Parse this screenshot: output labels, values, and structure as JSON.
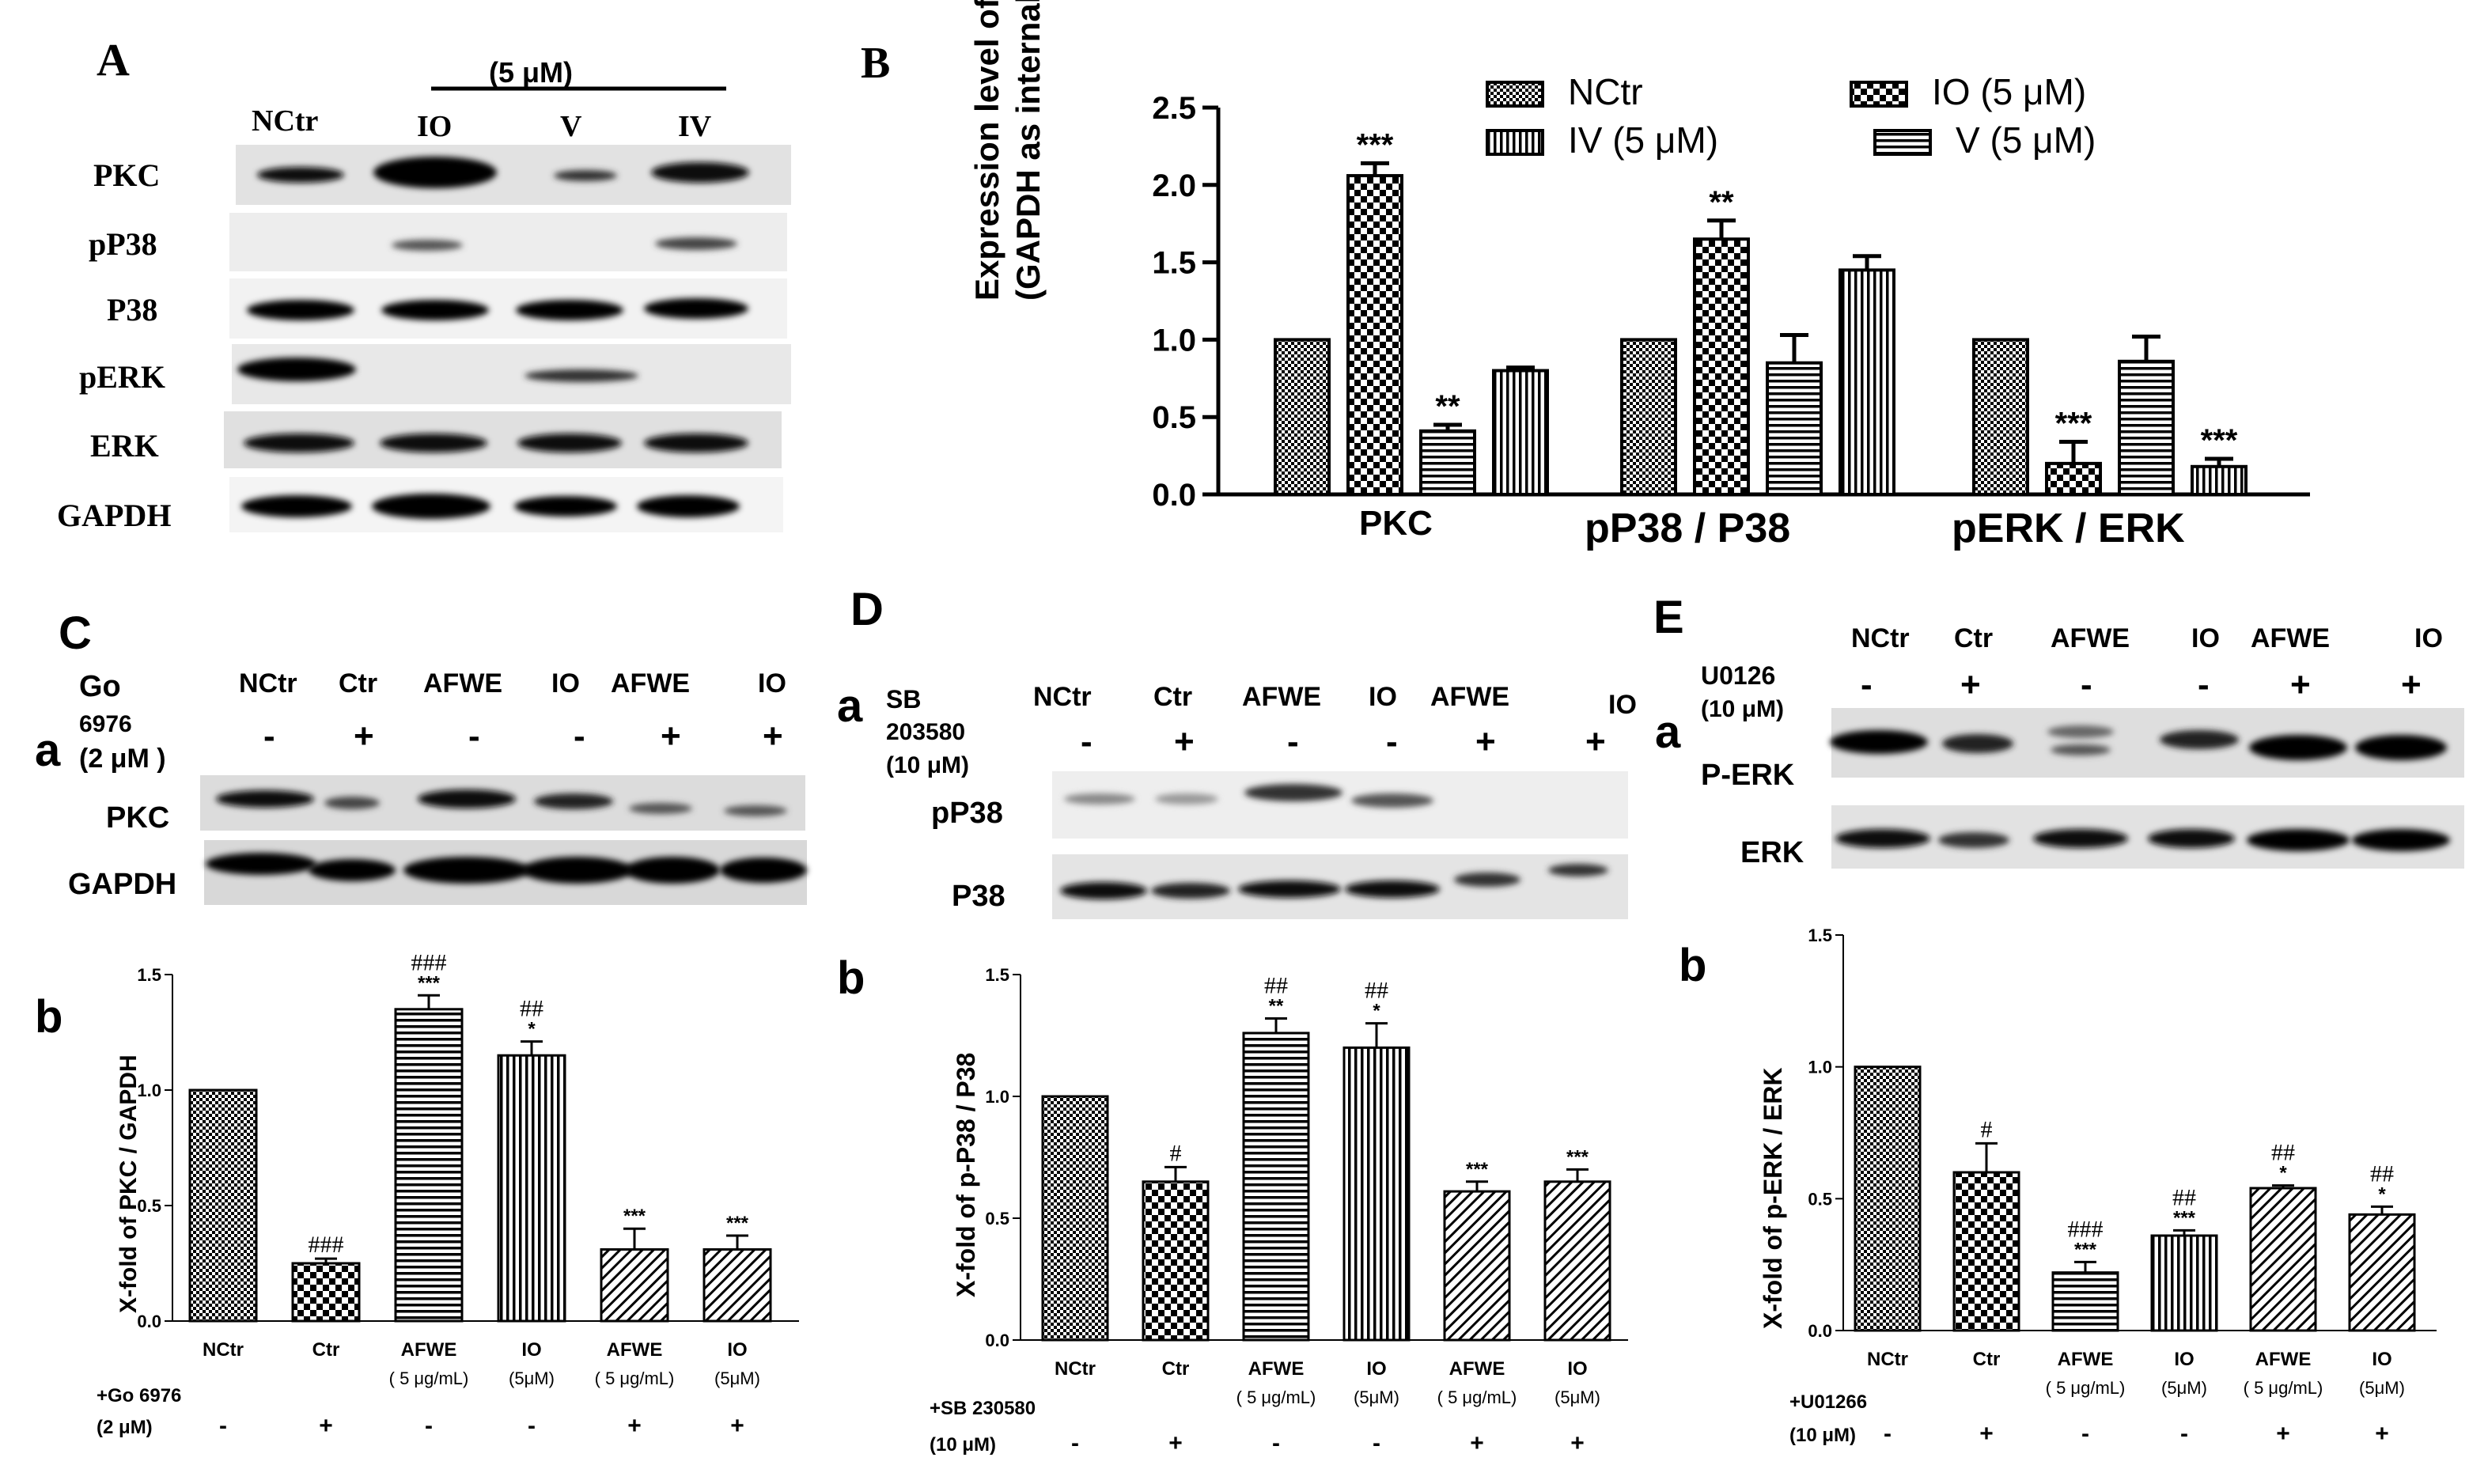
{
  "figure": {
    "panelA": {
      "letter": "A",
      "dose": "(5 μM)",
      "lanes": [
        "NCtr",
        "IO",
        "V",
        "IV"
      ],
      "rows": [
        "PKC",
        "pP38",
        "P38",
        "pERK",
        "ERK",
        "GAPDH"
      ]
    },
    "panelB": {
      "letter": "B",
      "ylabel1": "Expression level of proteins",
      "ylabel2": "(GAPDH as internal normalization)",
      "legend": [
        "NCtr",
        "IO (5 μM)",
        "IV (5 μM)",
        "V (5 μM)"
      ],
      "groups": [
        "PKC",
        "pP38 / P38",
        "pERK / ERK"
      ],
      "yticks": [
        "0.0",
        "0.5",
        "1.0",
        "1.5",
        "2.0",
        "2.5"
      ]
    },
    "panelC": {
      "letter": "C",
      "sub_a": "a",
      "sub_b": "b",
      "inhibitor1": "Go",
      "inhibitor2": "6976",
      "inhibitor3": "(2 μM )",
      "lanes": [
        "NCtr",
        "Ctr",
        "AFWE",
        "IO",
        "AFWE",
        "IO"
      ],
      "signs": [
        "-",
        "+",
        "-",
        "-",
        "+",
        "+"
      ],
      "rows": [
        "PKC",
        "GAPDH"
      ],
      "ylabel": "X-fold of PKC / GAPDH",
      "yticks": [
        "0.0",
        "0.5",
        "1.0",
        "1.5"
      ],
      "xcats": [
        [
          "NCtr"
        ],
        [
          "Ctr"
        ],
        [
          "AFWE",
          "( 5 μg/mL)"
        ],
        [
          "IO",
          "(5μM)"
        ],
        [
          "AFWE",
          "( 5 μg/mL)"
        ],
        [
          "IO",
          "(5μM)"
        ]
      ],
      "bottom1": "+Go 6976",
      "bottom2": "(2 μM)",
      "bsigns": [
        "-",
        "+",
        "-",
        "-",
        "+",
        "+"
      ]
    },
    "panelD": {
      "letter": "D",
      "sub_a": "a",
      "sub_b": "b",
      "inhibitor1": "SB",
      "inhibitor2": "203580",
      "inhibitor3": "(10  μM)",
      "lanes": [
        "NCtr",
        "Ctr",
        "AFWE",
        "IO",
        "AFWE",
        "IO"
      ],
      "signs": [
        "-",
        "+",
        "-",
        "-",
        "+",
        "+"
      ],
      "rows": [
        "pP38",
        "P38"
      ],
      "ylabel": "X-fold of p-P38 / P38",
      "yticks": [
        "0.0",
        "0.5",
        "1.0",
        "1.5"
      ],
      "xcats": [
        [
          "NCtr"
        ],
        [
          "Ctr"
        ],
        [
          "AFWE",
          "( 5 μg/mL)"
        ],
        [
          "IO",
          "(5μM)"
        ],
        [
          "AFWE",
          "( 5 μg/mL)"
        ],
        [
          "IO",
          "(5μM)"
        ]
      ],
      "bottom1": "+SB 230580",
      "bottom2": "(10 μM)",
      "bsigns": [
        "-",
        "+",
        "-",
        "-",
        "+",
        "+"
      ]
    },
    "panelE": {
      "letter": "E",
      "sub_a": "a",
      "sub_b": "b",
      "inhibitor1": "U0126",
      "inhibitor2": "(10  μM)",
      "lanes": [
        "NCtr",
        "Ctr",
        "AFWE",
        "IO",
        "AFWE",
        "IO"
      ],
      "signs": [
        "-",
        "+",
        "-",
        "-",
        "+",
        "+"
      ],
      "rows": [
        "P-ERK",
        "ERK"
      ],
      "ylabel": "X-fold of p-ERK / ERK",
      "yticks": [
        "0.0",
        "0.5",
        "1.0",
        "1.5"
      ],
      "xcats": [
        [
          "NCtr"
        ],
        [
          "Ctr"
        ],
        [
          "AFWE",
          "( 5 μg/mL)"
        ],
        [
          "IO",
          "(5μM)"
        ],
        [
          "AFWE",
          "( 5 μg/mL)"
        ],
        [
          "IO",
          "(5μM)"
        ]
      ],
      "bottom1": "+U01266",
      "bottom2": "(10 μM)",
      "bsigns": [
        "-",
        "+",
        "-",
        "-",
        "+",
        "+"
      ]
    }
  },
  "chart_data": [
    {
      "type": "bar",
      "panel": "B",
      "ylabel": "Expression level of proteins (GAPDH as internal normalization)",
      "categories": [
        "PKC",
        "pP38 / P38",
        "pERK / ERK"
      ],
      "ylim": [
        0,
        2.5
      ],
      "legend_position": "top",
      "series": [
        {
          "name": "NCtr",
          "values": [
            1.0,
            1.0,
            1.0
          ],
          "errors": [
            0,
            0,
            0
          ],
          "marks": [
            "",
            "",
            ""
          ],
          "pattern": "checker"
        },
        {
          "name": "IO (5 μM)",
          "values": [
            2.06,
            1.65,
            0.2
          ],
          "errors": [
            0.08,
            0.12,
            0.14
          ],
          "marks": [
            "***",
            "**",
            "***"
          ],
          "pattern": "checker_large"
        },
        {
          "name": "V (5 μM)",
          "values": [
            0.41,
            0.85,
            0.86
          ],
          "errors": [
            0.04,
            0.18,
            0.16
          ],
          "marks": [
            "**",
            "",
            ""
          ],
          "pattern": "hlines"
        },
        {
          "name": "IV (5 μM)",
          "values": [
            0.8,
            1.45,
            0.18
          ],
          "errors": [
            0.02,
            0.09,
            0.05
          ],
          "marks": [
            "",
            "",
            "***"
          ],
          "pattern": "vlines"
        }
      ]
    },
    {
      "type": "bar",
      "panel": "Cb",
      "ylabel": "X-fold of PKC / GAPDH",
      "categories": [
        "NCtr",
        "Ctr",
        "AFWE ( 5 μg/mL)",
        "IO (5μM)",
        "AFWE ( 5 μg/mL)",
        "IO (5μM)"
      ],
      "values": [
        1.0,
        0.25,
        1.35,
        1.15,
        0.31,
        0.31
      ],
      "errors": [
        0,
        0.02,
        0.06,
        0.06,
        0.09,
        0.06
      ],
      "stars": [
        "",
        "",
        "***",
        "*",
        "***",
        "***"
      ],
      "hashes": [
        "",
        "###",
        "###",
        "##",
        "",
        ""
      ],
      "patterns": [
        "checker",
        "checker_large",
        "hlines",
        "vlines",
        "diag",
        "diag"
      ],
      "ylim": [
        0,
        1.5
      ]
    },
    {
      "type": "bar",
      "panel": "Db",
      "ylabel": "X-fold of p-P38 / P38",
      "categories": [
        "NCtr",
        "Ctr",
        "AFWE ( 5 μg/mL)",
        "IO (5μM)",
        "AFWE ( 5 μg/mL)",
        "IO (5μM)"
      ],
      "values": [
        1.0,
        0.65,
        1.26,
        1.2,
        0.61,
        0.65
      ],
      "errors": [
        0,
        0.06,
        0.06,
        0.1,
        0.04,
        0.05
      ],
      "stars": [
        "",
        "",
        "**",
        "*",
        "***",
        "***"
      ],
      "hashes": [
        "",
        "#",
        "##",
        "##",
        "",
        ""
      ],
      "patterns": [
        "checker",
        "checker_large",
        "hlines",
        "vlines",
        "diag",
        "diag"
      ],
      "ylim": [
        0,
        1.5
      ]
    },
    {
      "type": "bar",
      "panel": "Eb",
      "ylabel": "X-fold of p-ERK / ERK",
      "categories": [
        "NCtr",
        "Ctr",
        "AFWE ( 5 μg/mL)",
        "IO (5μM)",
        "AFWE ( 5 μg/mL)",
        "IO (5μM)"
      ],
      "values": [
        1.0,
        0.6,
        0.22,
        0.36,
        0.54,
        0.44
      ],
      "errors": [
        0,
        0.11,
        0.04,
        0.02,
        0.01,
        0.03
      ],
      "stars": [
        "",
        "",
        "***",
        "***",
        "*",
        "*"
      ],
      "hashes": [
        "",
        "#",
        "###",
        "##",
        "##",
        "##"
      ],
      "patterns": [
        "checker",
        "checker_large",
        "hlines",
        "vlines",
        "diag",
        "diag"
      ],
      "ylim": [
        0,
        1.5
      ]
    }
  ]
}
